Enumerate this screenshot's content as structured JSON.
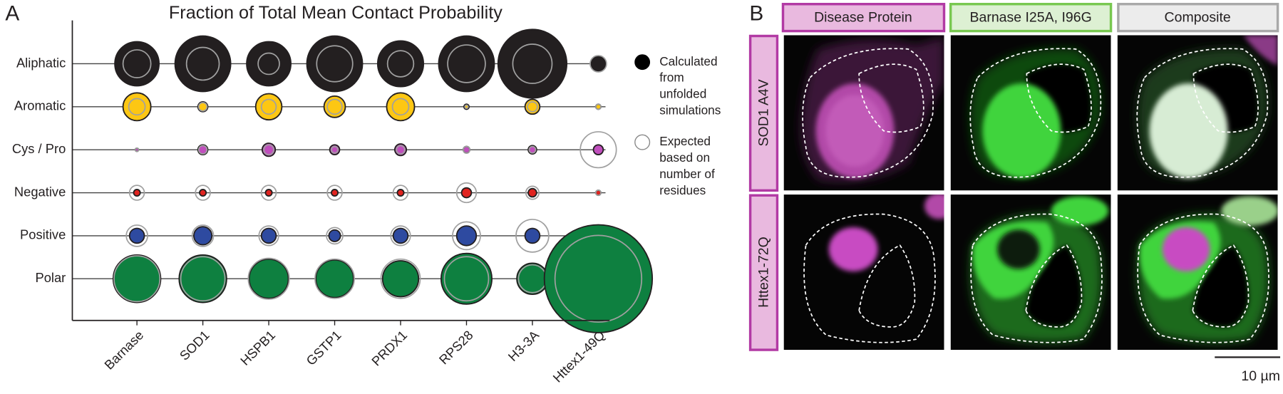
{
  "chart_data": {
    "type": "bubble",
    "panel_letter": "A",
    "title": "Fraction of Total Mean Contact Probability",
    "categories": [
      "Barnase",
      "SOD1",
      "HSPB1",
      "GSTP1",
      "PRDX1",
      "RPS28",
      "H3-3A",
      "Httex1-49Q"
    ],
    "rows": [
      "Aliphatic",
      "Aromatic",
      "Cys / Pro",
      "Negative",
      "Positive",
      "Polar"
    ],
    "row_colors": [
      "#231f20",
      "#fdc713",
      "#c04fbd",
      "#e0231f",
      "#2e4aa0",
      "#0e8040"
    ],
    "series": [
      {
        "name": "Calculated from unfolded simulations",
        "color": "#231f20",
        "values": [
          [
            0.365,
            0.578,
            0.365,
            0.578,
            0.392,
            0.578,
            0.882,
            0.041
          ],
          [
            0.145,
            0.018,
            0.128,
            0.085,
            0.145,
            0.005,
            0.041,
            0.005
          ],
          [
            0.002,
            0.018,
            0.032,
            0.018,
            0.025,
            0.008,
            0.013,
            0.018
          ],
          [
            0.008,
            0.008,
            0.008,
            0.008,
            0.008,
            0.018,
            0.013,
            0.005
          ],
          [
            0.041,
            0.061,
            0.041,
            0.025,
            0.041,
            0.072,
            0.041,
            0.008
          ],
          [
            0.421,
            0.421,
            0.288,
            0.265,
            0.242,
            0.481,
            0.181,
            2.178
          ]
        ]
      },
      {
        "name": "Expected based on number of residues",
        "color": "#a0a0a0",
        "values": [
          [
            0.145,
            0.2,
            0.085,
            0.242,
            0.128,
            0.265,
            0.288,
            0.05
          ],
          [
            0.05,
            0.013,
            0.041,
            0.041,
            0.05,
            0.002,
            0.018,
            0.005
          ],
          [
            0.002,
            0.013,
            0.018,
            0.008,
            0.013,
            0.008,
            0.008,
            0.242
          ],
          [
            0.041,
            0.041,
            0.041,
            0.041,
            0.041,
            0.072,
            0.032,
            0.005
          ],
          [
            0.085,
            0.085,
            0.072,
            0.05,
            0.072,
            0.145,
            0.2,
            0.008
          ],
          [
            0.392,
            0.365,
            0.313,
            0.288,
            0.288,
            0.365,
            0.145,
            1.405
          ]
        ]
      }
    ]
  },
  "panel_b": {
    "panel_letter": "B",
    "columns": [
      "Disease Protein",
      "Barnase I25A, I96G",
      "Composite"
    ],
    "rows": [
      "SOD1 A4V",
      "Httex1-72Q"
    ],
    "scale_bar": "10 µm"
  }
}
